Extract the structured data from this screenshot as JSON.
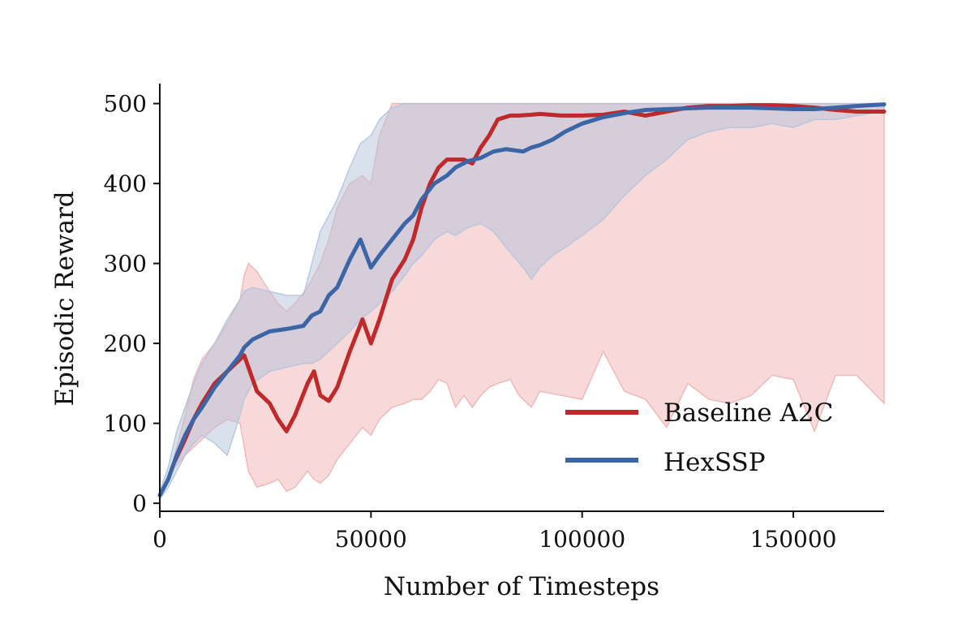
{
  "chart_data": {
    "type": "line",
    "title": "",
    "xlabel": "Number of Timesteps",
    "ylabel": "Episodic Reward",
    "xlim": [
      0,
      171500
    ],
    "ylim": [
      -10,
      525
    ],
    "x_ticks": [
      0,
      50000,
      100000,
      150000
    ],
    "x_tick_labels": [
      "0",
      "50000",
      "100000",
      "150000"
    ],
    "y_ticks": [
      0,
      100,
      200,
      300,
      400,
      500
    ],
    "y_tick_labels": [
      "0",
      "100",
      "200",
      "300",
      "400",
      "500"
    ],
    "grid": false,
    "legend_position": "bottom-right",
    "series": [
      {
        "name": "Baseline A2C",
        "color": "#c0282a",
        "band_color": "#f0b3b3",
        "x": [
          3500,
          6000,
          8000,
          10000,
          13000,
          16000,
          19000,
          20000,
          21000,
          23000,
          26000,
          28000,
          30000,
          32000,
          35000,
          36500,
          38000,
          40000,
          42000,
          45000,
          48000,
          50000,
          52000,
          55000,
          58000,
          60000,
          62000,
          64000,
          66000,
          68000,
          70000,
          72000,
          74000,
          76000,
          78000,
          80000,
          83000,
          85000,
          88000,
          90000,
          95000,
          100000,
          105000,
          110000,
          115000,
          120000,
          125000,
          130000,
          135000,
          140000,
          145000,
          150000,
          155000,
          160000,
          165000,
          171500
        ],
        "mean": [
          52,
          80,
          105,
          125,
          150,
          165,
          180,
          185,
          170,
          140,
          125,
          105,
          90,
          110,
          150,
          165,
          135,
          128,
          145,
          190,
          230,
          200,
          230,
          280,
          305,
          330,
          370,
          400,
          420,
          430,
          430,
          430,
          425,
          445,
          460,
          480,
          485,
          485,
          486,
          487,
          485,
          485,
          486,
          490,
          485,
          490,
          495,
          497,
          497,
          498,
          498,
          497,
          495,
          492,
          490,
          490
        ],
        "upper": [
          60,
          110,
          155,
          180,
          200,
          225,
          255,
          285,
          300,
          290,
          265,
          250,
          240,
          250,
          270,
          285,
          300,
          330,
          370,
          400,
          410,
          400,
          460,
          500,
          500,
          500,
          500,
          500,
          500,
          500,
          500,
          500,
          500,
          500,
          500,
          500,
          500,
          500,
          500,
          500,
          500,
          500,
          500,
          500,
          500,
          500,
          500,
          500,
          500,
          500,
          500,
          500,
          500,
          500,
          500,
          500
        ],
        "lower": [
          45,
          60,
          70,
          80,
          95,
          105,
          100,
          70,
          40,
          20,
          25,
          30,
          15,
          20,
          40,
          30,
          25,
          35,
          55,
          75,
          95,
          85,
          105,
          120,
          125,
          130,
          130,
          140,
          155,
          150,
          120,
          135,
          120,
          135,
          145,
          150,
          155,
          135,
          120,
          140,
          135,
          130,
          190,
          140,
          130,
          95,
          150,
          130,
          125,
          135,
          160,
          155,
          90,
          160,
          160,
          125
        ]
      },
      {
        "name": "HexSSP",
        "color": "#3b65a5",
        "band_color": "#b4c4dc",
        "x": [
          0,
          2000,
          4000,
          6000,
          8000,
          10000,
          13000,
          16000,
          19000,
          20000,
          22000,
          26000,
          30000,
          34000,
          36000,
          38000,
          40000,
          42000,
          45000,
          47500,
          50000,
          52000,
          55000,
          58000,
          60000,
          62000,
          65000,
          68000,
          70000,
          73000,
          76000,
          79000,
          82000,
          86000,
          88000,
          90000,
          93000,
          96000,
          100000,
          105000,
          110000,
          115000,
          120000,
          125000,
          130000,
          135000,
          140000,
          145000,
          150000,
          155000,
          160000,
          165000,
          171500
        ],
        "mean": [
          10,
          30,
          60,
          85,
          105,
          120,
          145,
          165,
          185,
          195,
          205,
          215,
          218,
          222,
          235,
          240,
          260,
          270,
          305,
          330,
          295,
          310,
          330,
          350,
          360,
          380,
          400,
          410,
          420,
          428,
          432,
          440,
          443,
          440,
          445,
          448,
          455,
          465,
          475,
          483,
          488,
          492,
          493,
          494,
          495,
          495,
          495,
          494,
          493,
          493,
          495,
          497,
          499
        ],
        "upper": [
          15,
          45,
          90,
          120,
          150,
          175,
          200,
          230,
          255,
          265,
          270,
          265,
          260,
          260,
          300,
          340,
          360,
          380,
          420,
          450,
          460,
          480,
          495,
          500,
          500,
          500,
          500,
          500,
          500,
          500,
          500,
          500,
          500,
          500,
          500,
          500,
          500,
          500,
          500,
          500,
          500,
          500,
          500,
          500,
          500,
          500,
          500,
          500,
          500,
          500,
          500,
          500,
          500
        ],
        "lower": [
          5,
          20,
          40,
          60,
          75,
          85,
          75,
          60,
          110,
          130,
          150,
          165,
          170,
          175,
          175,
          180,
          190,
          200,
          215,
          230,
          240,
          250,
          265,
          285,
          300,
          310,
          330,
          340,
          335,
          345,
          350,
          340,
          320,
          295,
          280,
          295,
          310,
          320,
          335,
          355,
          385,
          410,
          430,
          455,
          465,
          470,
          470,
          475,
          470,
          480,
          480,
          485,
          490
        ]
      }
    ]
  }
}
